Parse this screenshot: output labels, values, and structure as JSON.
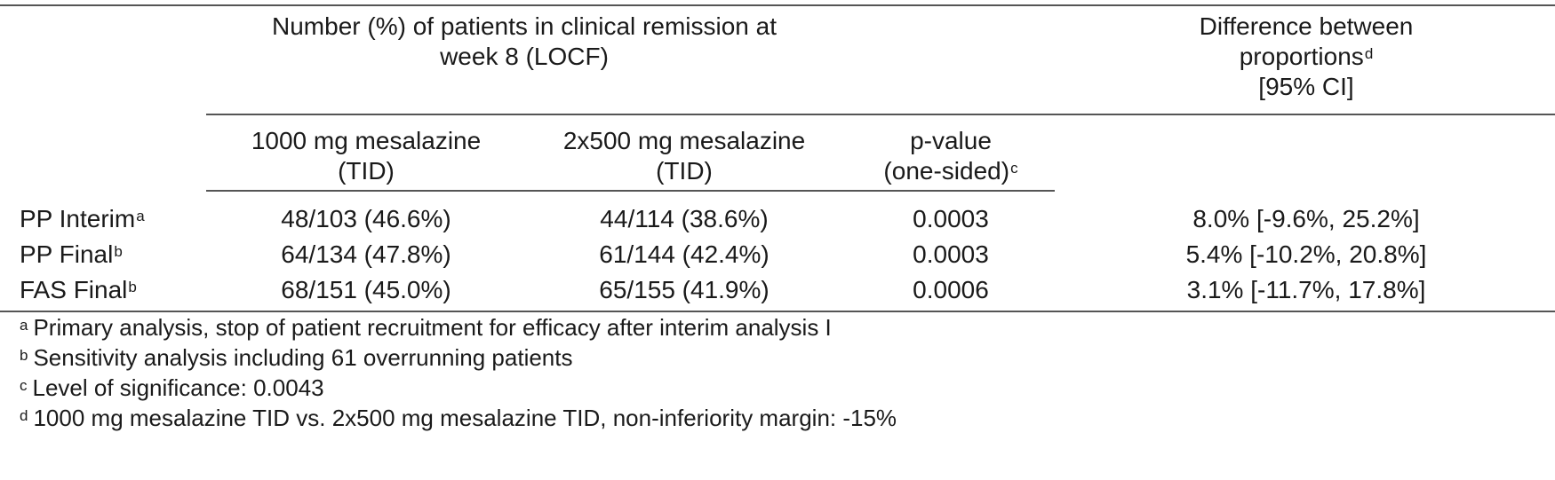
{
  "header": {
    "group_title_line1": "Number (%) of patients in clinical remission at",
    "group_title_line2": "week 8 (LOCF)",
    "diff_title_line1": "Difference between",
    "diff_title_line2": "proportions",
    "diff_title_sup": "d",
    "diff_title_line3": "[95% CI]",
    "col1_line1": "1000 mg mesalazine",
    "col1_line2": "(TID)",
    "col2_line1": "2x500 mg mesalazine",
    "col2_line2": "(TID)",
    "col3_line1": "p-value",
    "col3_line2": "(one-sided)",
    "col3_sup": "c"
  },
  "rows": [
    {
      "label": "PP Interim",
      "sup": "a",
      "col1": "48/103 (46.6%)",
      "col2": "44/114 (38.6%)",
      "p": "0.0003",
      "diff": "8.0% [-9.6%, 25.2%]"
    },
    {
      "label": "PP Final",
      "sup": "b",
      "col1": "64/134 (47.8%)",
      "col2": "61/144 (42.4%)",
      "p": "0.0003",
      "diff": "5.4% [-10.2%, 20.8%]"
    },
    {
      "label": "FAS Final",
      "sup": "b",
      "col1": "68/151 (45.0%)",
      "col2": "65/155 (41.9%)",
      "p": "0.0006",
      "diff": "3.1%  [-11.7%, 17.8%]"
    }
  ],
  "footnotes": [
    {
      "mark": "a",
      "text": "Primary analysis, stop of patient recruitment for efficacy after interim analysis I"
    },
    {
      "mark": "b",
      "text": "Sensitivity analysis including 61 overrunning patients"
    },
    {
      "mark": "c",
      "text": "Level of significance: 0.0043"
    },
    {
      "mark": "d",
      "text": "1000 mg mesalazine TID vs. 2x500 mg mesalazine TID, non-inferiority margin: -15%"
    }
  ]
}
